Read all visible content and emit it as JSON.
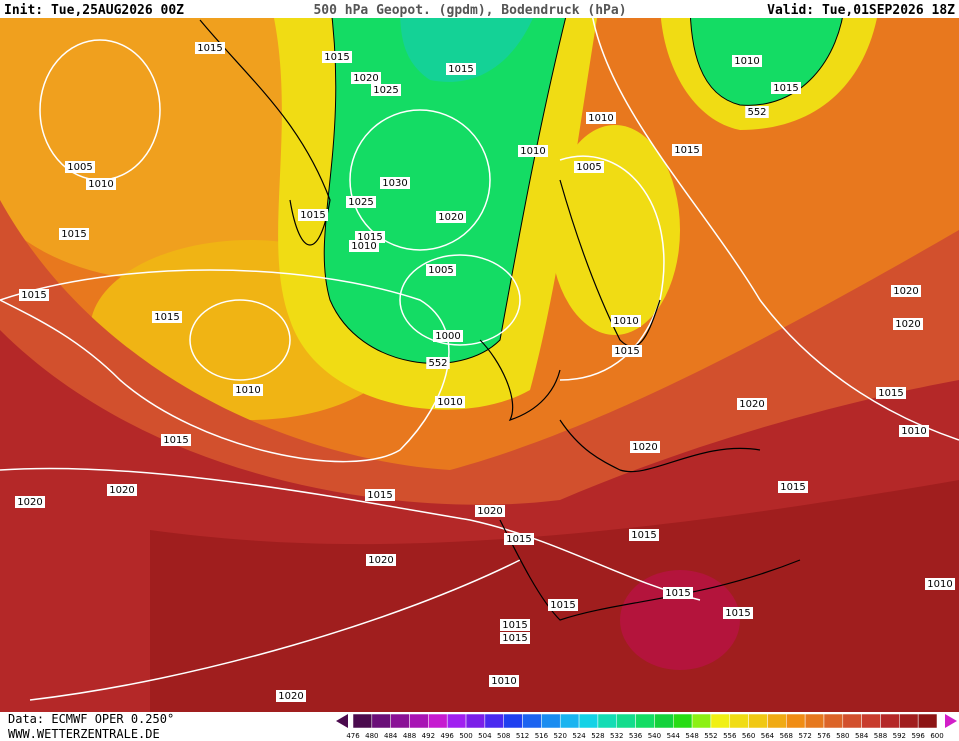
{
  "header": {
    "init": "Init: Tue,25AUG2026 00Z",
    "title": "500 hPa Geopot. (gpdm), Bodendruck (hPa)",
    "valid": "Valid: Tue,01SEP2026 18Z"
  },
  "isobar_labels": [
    1015,
    1015,
    1020,
    1025,
    1015,
    1010,
    1015,
    552,
    1010,
    1010,
    1015,
    1005,
    1005,
    1010,
    1030,
    1025,
    1015,
    1020,
    1015,
    1015,
    1010,
    1005,
    1015,
    1015,
    1000,
    1010,
    1015,
    552,
    1020,
    1020,
    1010,
    1010,
    1015,
    1020,
    1010,
    1015,
    1020,
    1020,
    1015,
    1015,
    1020,
    1020,
    1015,
    1015,
    1020,
    1010,
    1015,
    1015,
    1015,
    1015,
    1015,
    1010,
    1020
  ],
  "footer": {
    "source": "Data: ECMWF OPER 0.250°",
    "site": "WWW.WETTERZENTRALE.DE"
  },
  "color_scale": {
    "values": [
      476,
      480,
      484,
      488,
      492,
      496,
      500,
      504,
      508,
      512,
      516,
      520,
      524,
      528,
      532,
      536,
      540,
      544,
      548,
      552,
      556,
      560,
      564,
      568,
      572,
      576,
      580,
      584,
      588,
      592,
      596,
      600
    ],
    "colors": [
      "#4b0b4e",
      "#6a0f78",
      "#8a1296",
      "#a815b4",
      "#c61bd0",
      "#a020f0",
      "#7b1fe8",
      "#4a2af0",
      "#2040f0",
      "#1d64f0",
      "#1a8cf0",
      "#1ab4f0",
      "#14d2e6",
      "#14dcb4",
      "#14dc8c",
      "#14dc64",
      "#14d23c",
      "#28dc14",
      "#8cf014",
      "#f0f014",
      "#f0dc14",
      "#f0c814",
      "#f0aa14",
      "#f08c14",
      "#e6781e",
      "#dc6428",
      "#d2502d",
      "#c83c2d",
      "#b42828",
      "#a01e1e",
      "#8c1414"
    ]
  }
}
